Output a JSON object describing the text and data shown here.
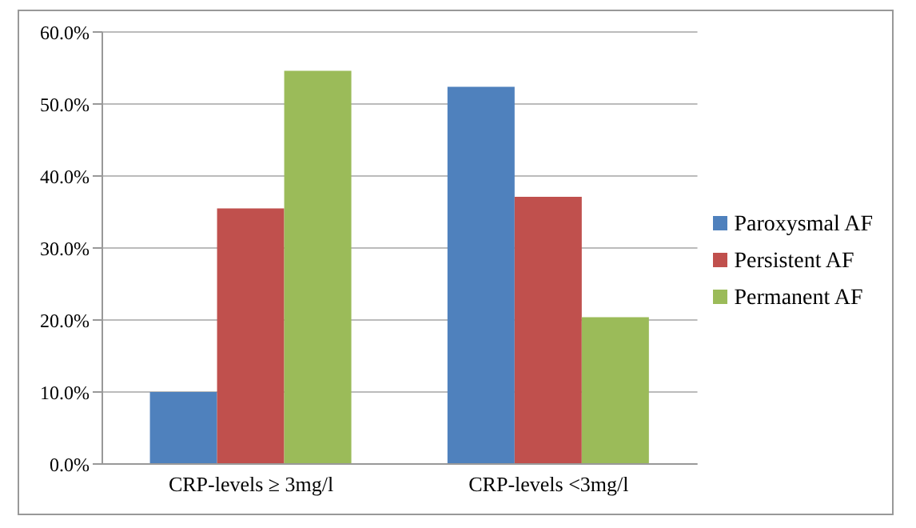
{
  "chart_data": {
    "type": "bar",
    "categories": [
      "CRP-levels ≥ 3mg/l",
      "CRP-levels <3mg/l"
    ],
    "series": [
      {
        "name": "Paroxysmal AF",
        "color": "#4f81bd",
        "values": [
          10.0,
          52.4
        ]
      },
      {
        "name": "Persistent AF",
        "color": "#c0504d",
        "values": [
          35.5,
          37.1
        ]
      },
      {
        "name": "Permanent AF",
        "color": "#9bbb59",
        "values": [
          54.6,
          20.4
        ]
      }
    ],
    "ylim": [
      0,
      60
    ],
    "yticks": [
      {
        "value": 0,
        "label": "0.0%"
      },
      {
        "value": 10,
        "label": "10.0%"
      },
      {
        "value": 20,
        "label": "20.0%"
      },
      {
        "value": 30,
        "label": "30.0%"
      },
      {
        "value": 40,
        "label": "40.0%"
      },
      {
        "value": 50,
        "label": "50.0%"
      },
      {
        "value": 60,
        "label": "60.0%"
      }
    ],
    "grid": "y",
    "legend": "right"
  }
}
